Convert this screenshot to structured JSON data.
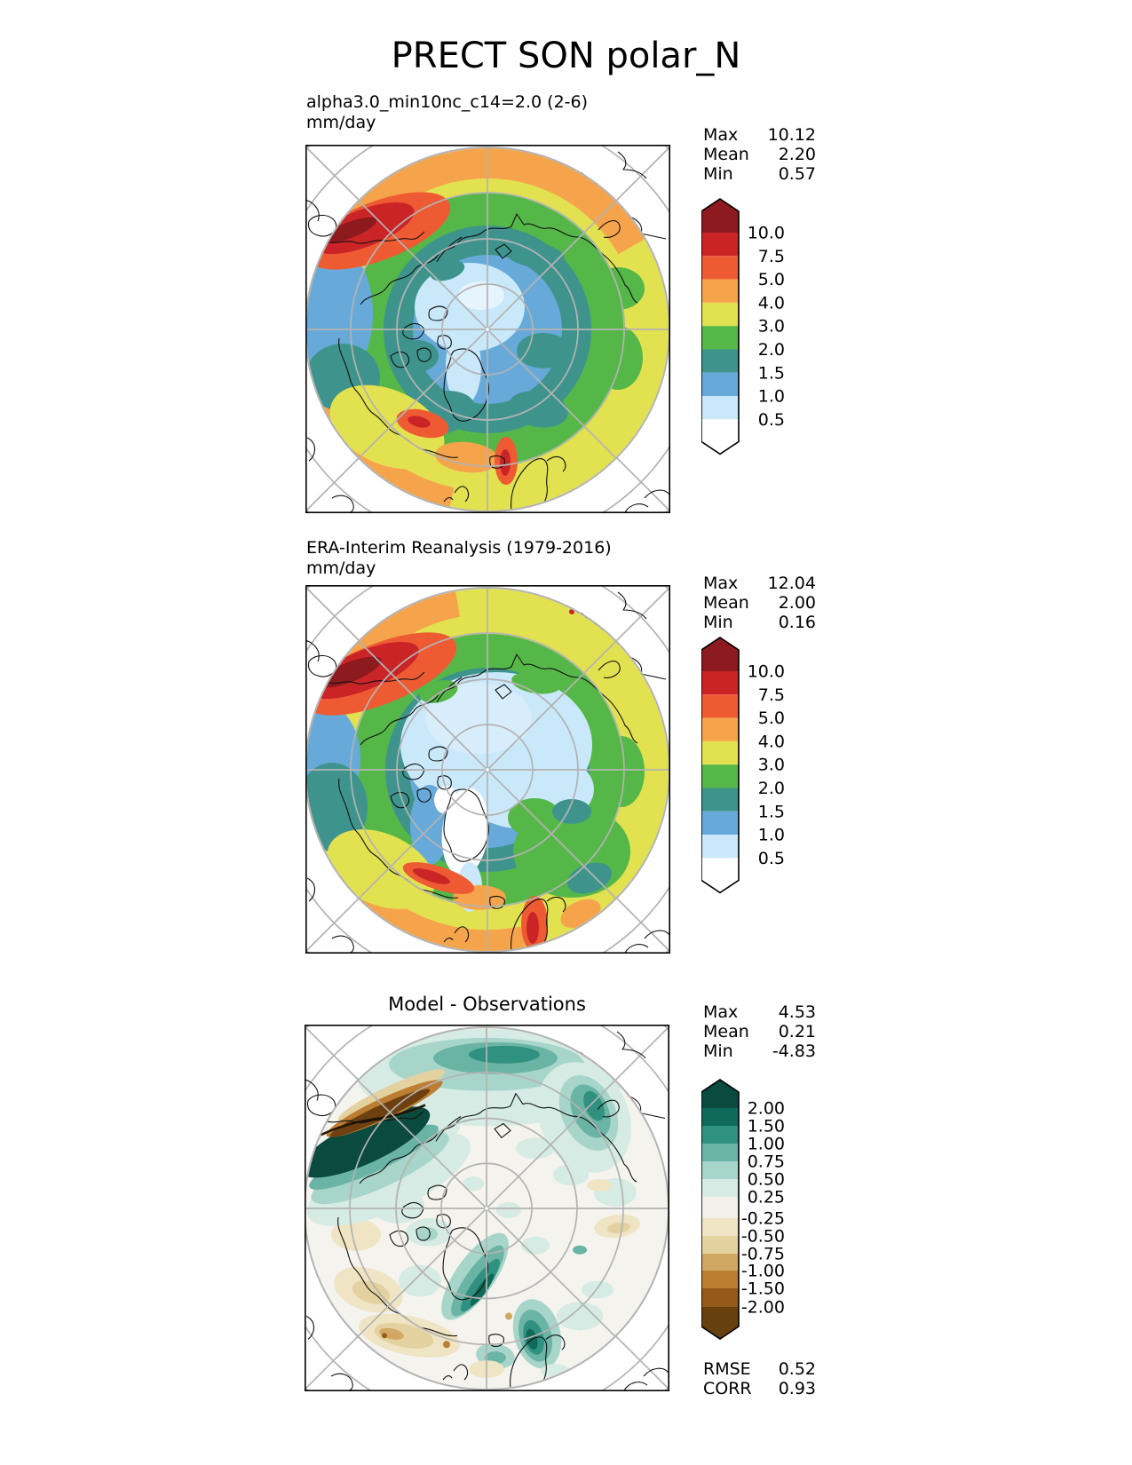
{
  "figure_title": "PRECT SON polar_N",
  "panels": [
    {
      "id": "model",
      "title_lines": [
        "alpha3.0_min10nc_c14=2.0 (2-6)",
        "mm/day"
      ],
      "stats": [
        {
          "label": "Max",
          "value": "10.12"
        },
        {
          "label": "Mean",
          "value": "2.20"
        },
        {
          "label": "Min",
          "value": "0.57"
        }
      ],
      "colorbar": {
        "levels": [
          "10.0",
          "7.5",
          "5.0",
          "4.0",
          "3.0",
          "2.0",
          "1.5",
          "1.0",
          "0.5"
        ],
        "over_color": "#8c1a1e",
        "colors": [
          "#cb2427",
          "#ee5b33",
          "#f6a44c",
          "#e2e150",
          "#56b749",
          "#3e948c",
          "#67aad9",
          "#c9e8f9"
        ],
        "under_color": "#ffffff"
      }
    },
    {
      "id": "observations",
      "title_lines": [
        "ERA-Interim Reanalysis (1979-2016)",
        "mm/day"
      ],
      "stats": [
        {
          "label": "Max",
          "value": "12.04"
        },
        {
          "label": "Mean",
          "value": "2.00"
        },
        {
          "label": "Min",
          "value": "0.16"
        }
      ],
      "colorbar": {
        "levels": [
          "10.0",
          "7.5",
          "5.0",
          "4.0",
          "3.0",
          "2.0",
          "1.5",
          "1.0",
          "0.5"
        ],
        "over_color": "#8c1a1e",
        "colors": [
          "#cb2427",
          "#ee5b33",
          "#f6a44c",
          "#e2e150",
          "#56b749",
          "#3e948c",
          "#67aad9",
          "#c9e8f9"
        ],
        "under_color": "#ffffff"
      }
    },
    {
      "id": "difference",
      "title_lines": [
        "Model - Observations"
      ],
      "stats": [
        {
          "label": "Max",
          "value": "4.53"
        },
        {
          "label": "Mean",
          "value": "0.21"
        },
        {
          "label": "Min",
          "value": "-4.83"
        }
      ],
      "colorbar": {
        "levels": [
          "2.00",
          "1.50",
          "1.00",
          "0.75",
          "0.50",
          "0.25",
          "-0.25",
          "-0.50",
          "-0.75",
          "-1.00",
          "-1.50",
          "-2.00"
        ],
        "over_color": "#0b4a3f",
        "colors": [
          "#0f6a5a",
          "#319180",
          "#69b4a4",
          "#a8d5c9",
          "#d5ebe4",
          "#f2f0e9",
          "#efe4c3",
          "#e4d1a0",
          "#d1a863",
          "#bb7e32",
          "#965a18"
        ],
        "under_color": "#66400f"
      },
      "extra_stats": [
        {
          "label": "RMSE",
          "value": "0.52"
        },
        {
          "label": "CORR",
          "value": "0.93"
        }
      ]
    }
  ],
  "chart_data": [
    {
      "type": "heatmap",
      "subtype": "filled-contour polar stereographic map (north polar)",
      "variable": "PRECT",
      "season": "SON",
      "region": "polar_N",
      "title": "alpha3.0_min10nc_c14=2.0 (2-6)",
      "units": "mm/day",
      "contour_levels": [
        0.5,
        1.0,
        1.5,
        2.0,
        3.0,
        4.0,
        5.0,
        7.5,
        10.0
      ],
      "palette_low_to_high": [
        "#ffffff",
        "#c9e8f9",
        "#67aad9",
        "#3e948c",
        "#56b749",
        "#e2e150",
        "#f6a44c",
        "#ee5b33",
        "#cb2427",
        "#8c1a1e"
      ],
      "stats": {
        "max": 10.12,
        "mean": 2.2,
        "min": 0.57
      },
      "legend_position": "right",
      "pattern_notes": "light blue (<1 mm/day) over central Arctic; blue/teal ring over Arctic ocean margins; green over subpolar land; yellow/orange around outer ring; red band >7.5 over Norwegian Sea (upper left); orange/red spots over Norway and Baltic (bottom)"
    },
    {
      "type": "heatmap",
      "subtype": "filled-contour polar stereographic map (north polar)",
      "variable": "PRECT",
      "season": "SON",
      "region": "polar_N",
      "title": "ERA-Interim Reanalysis (1979-2016)",
      "units": "mm/day",
      "contour_levels": [
        0.5,
        1.0,
        1.5,
        2.0,
        3.0,
        4.0,
        5.0,
        7.5,
        10.0
      ],
      "palette_low_to_high": [
        "#ffffff",
        "#c9e8f9",
        "#67aad9",
        "#3e948c",
        "#56b749",
        "#e2e150",
        "#f6a44c",
        "#ee5b33",
        "#cb2427",
        "#8c1a1e"
      ],
      "stats": {
        "max": 12.04,
        "mean": 2.0,
        "min": 0.16
      },
      "legend_position": "right",
      "pattern_notes": "larger light-blue dry pole, white (<0.5) over Greenland, strong red storm-track band over Norwegian Sea, orange/red along Norway coast and Baltic"
    },
    {
      "type": "heatmap",
      "subtype": "difference map (model minus observations), polar stereographic",
      "variable": "PRECT bias",
      "season": "SON",
      "region": "polar_N",
      "title": "Model - Observations",
      "units": "mm/day",
      "contour_levels": [
        -2.0,
        -1.5,
        -1.0,
        -0.75,
        -0.5,
        -0.25,
        0.25,
        0.5,
        0.75,
        1.0,
        1.5,
        2.0
      ],
      "palette_low_to_high": [
        "#66400f",
        "#965a18",
        "#bb7e32",
        "#d1a863",
        "#e4d1a0",
        "#efe4c3",
        "#f2f0e9",
        "#d5ebe4",
        "#a8d5c9",
        "#69b4a4",
        "#319180",
        "#0f6a5a",
        "#0b4a3f"
      ],
      "stats": {
        "max": 4.53,
        "mean": 0.21,
        "min": -4.83,
        "rmse": 0.52,
        "corr": 0.93
      },
      "legend_position": "right",
      "pattern_notes": "near-zero (white) over most of Arctic; strong dipole over Norwegian Sea (wet bias teal band next to dry brown band); wet bias over Greenland and Scandinavia; scattered dry tan patches over Canada and North Atlantic"
    }
  ]
}
